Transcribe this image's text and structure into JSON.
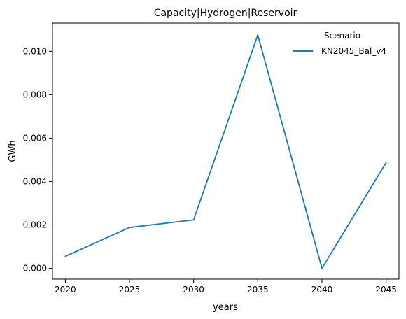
{
  "chart_data": {
    "type": "line",
    "title": "Capacity|Hydrogen|Reservoir",
    "xlabel": "years",
    "ylabel": "GWh",
    "x": [
      2020,
      2025,
      2030,
      2035,
      2040,
      2045
    ],
    "xticks": [
      "2020",
      "2025",
      "2030",
      "2035",
      "2040",
      "2045"
    ],
    "yticks": [
      "0.000",
      "0.002",
      "0.004",
      "0.006",
      "0.008",
      "0.010"
    ],
    "ytick_values": [
      0.0,
      0.002,
      0.004,
      0.006,
      0.008,
      0.01
    ],
    "xlim": [
      2019,
      2046
    ],
    "ylim": [
      -0.0005,
      0.0113
    ],
    "grid": false,
    "legend": {
      "title": "Scenario",
      "placement": "top-right"
    },
    "series": [
      {
        "name": "KN2045_Bal_v4",
        "color": "#1f77b4",
        "values": [
          0.00055,
          0.00188,
          0.00223,
          0.01075,
          0.0,
          0.00487
        ]
      }
    ]
  }
}
